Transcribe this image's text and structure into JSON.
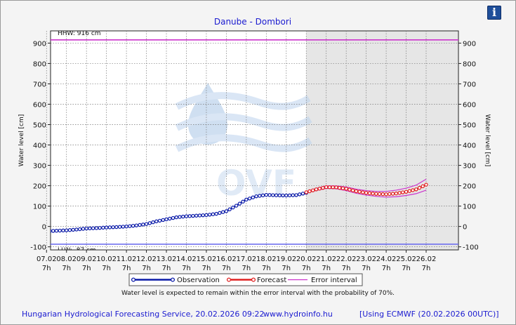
{
  "chart_data": {
    "type": "line",
    "title": "Danube - Dombori",
    "ylabel": "Water level [cm]",
    "ylim": [
      -115,
      960
    ],
    "y_ticks": [
      -100,
      0,
      100,
      200,
      300,
      400,
      500,
      600,
      700,
      800,
      900
    ],
    "x_tick_labels": [
      {
        "date": "07.02",
        "time": "7h"
      },
      {
        "date": "08.02",
        "time": "7h"
      },
      {
        "date": "09.02",
        "time": "7h"
      },
      {
        "date": "10.02",
        "time": "7h"
      },
      {
        "date": "11.02",
        "time": "7h"
      },
      {
        "date": "12.02",
        "time": "7h"
      },
      {
        "date": "13.02",
        "time": "7h"
      },
      {
        "date": "14.02",
        "time": "7h"
      },
      {
        "date": "15.02",
        "time": "7h"
      },
      {
        "date": "16.02",
        "time": "7h"
      },
      {
        "date": "17.02",
        "time": "7h"
      },
      {
        "date": "18.02",
        "time": "7h"
      },
      {
        "date": "19.02",
        "time": "7h"
      },
      {
        "date": "20.02",
        "time": "7h"
      },
      {
        "date": "21.02",
        "time": "7h"
      },
      {
        "date": "22.02",
        "time": "7h"
      },
      {
        "date": "23.02",
        "time": "7h"
      },
      {
        "date": "24.02",
        "time": "7h"
      },
      {
        "date": "25.02",
        "time": "7h"
      },
      {
        "date": "26.02",
        "time": "7h"
      }
    ],
    "grid": true,
    "legend_position": "bottom",
    "reference_lines": [
      {
        "label": "HHW: 916 cm",
        "value": 916,
        "color": "#cc33cc"
      },
      {
        "label": "LLW: -87 cm",
        "value": -87,
        "color": "#6666ee"
      }
    ],
    "series": [
      {
        "name": "Observation",
        "color": "#0a1aa8",
        "x": [
          "06.02 07h",
          "06.02 19h",
          "07.02 07h",
          "07.02 19h",
          "08.02 07h",
          "08.02 19h",
          "09.02 07h",
          "09.02 19h",
          "10.02 07h",
          "10.02 19h",
          "11.02 07h",
          "11.02 19h",
          "12.02 07h",
          "12.02 19h",
          "13.02 07h",
          "13.02 19h",
          "14.02 07h",
          "14.02 19h",
          "15.02 07h",
          "15.02 19h",
          "16.02 07h",
          "16.02 19h",
          "17.02 07h",
          "17.02 19h",
          "18.02 07h",
          "18.02 19h",
          "19.02 07h",
          "19.02 19h",
          "20.02 07h"
        ],
        "values": [
          -25,
          -24,
          -23,
          -21,
          -19,
          -15,
          -10,
          -8,
          -5,
          -3,
          0,
          5,
          12,
          25,
          35,
          45,
          50,
          53,
          56,
          62,
          75,
          102,
          132,
          148,
          155,
          153,
          152,
          154,
          165
        ]
      },
      {
        "name": "Forecast",
        "color": "#e02020",
        "x": [
          "20.02 07h",
          "20.02 19h",
          "21.02 07h",
          "21.02 19h",
          "22.02 07h",
          "22.02 19h",
          "23.02 07h",
          "23.02 19h",
          "24.02 07h",
          "24.02 19h",
          "25.02 07h",
          "25.02 19h",
          "26.02 07h"
        ],
        "values": [
          168,
          182,
          193,
          192,
          185,
          173,
          165,
          160,
          158,
          162,
          170,
          182,
          205
        ]
      },
      {
        "name": "Error interval",
        "color": "#cc33cc",
        "x": [
          "20.02 07h",
          "20.02 19h",
          "21.02 07h",
          "21.02 19h",
          "22.02 07h",
          "22.02 19h",
          "23.02 07h",
          "23.02 19h",
          "24.02 07h",
          "24.02 19h",
          "25.02 07h",
          "25.02 19h",
          "26.02 07h"
        ],
        "upper": [
          171,
          187,
          199,
          199,
          194,
          183,
          176,
          172,
          172,
          178,
          188,
          203,
          232
        ],
        "lower": [
          165,
          177,
          187,
          185,
          176,
          163,
          154,
          148,
          144,
          146,
          152,
          161,
          178
        ]
      }
    ]
  },
  "background_logo_text": "OVF",
  "note": "Water level is expected to remain within the error interval with the probability of 70%.",
  "footer": {
    "organization": "Hungarian Hydrological Forecasting Service, 20.02.2026 09:22",
    "website": "www.hydroinfo.hu",
    "model": "[Using ECMWF (20.02.2026  00UTC)]"
  },
  "info_icon_glyph": "i"
}
